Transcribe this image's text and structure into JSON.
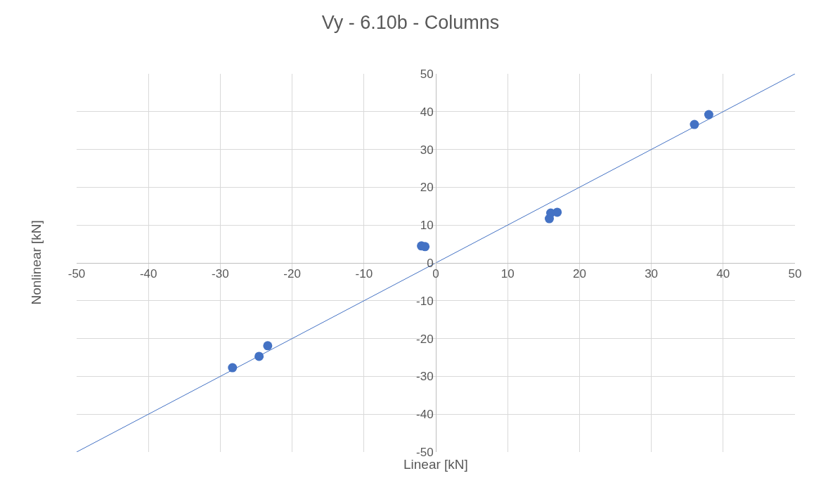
{
  "chart_data": {
    "type": "scatter",
    "title": "Vy - 6.10b - Columns",
    "xlabel": "Linear [kN]",
    "ylabel": "Nonlinear [kN]",
    "x": [
      -28.3,
      -24.6,
      -23.4,
      -2.0,
      -1.5,
      15.8,
      16.0,
      16.9,
      36.0,
      38.0
    ],
    "series": [
      {
        "color": "#4472c4",
        "marker": "circle",
        "values": [
          -27.7,
          -24.7,
          -21.9,
          4.5,
          4.3,
          11.7,
          13.2,
          13.4,
          36.6,
          39.2
        ]
      },
      {
        "type": "line",
        "color": "#4472c4",
        "x": [
          -50,
          50
        ],
        "values": [
          -50,
          50
        ]
      }
    ],
    "xlim": [
      -50,
      50
    ],
    "ylim": [
      -50,
      50
    ],
    "xticks": [
      -50,
      -40,
      -30,
      -20,
      -10,
      0,
      10,
      20,
      30,
      40,
      50
    ],
    "yticks": [
      -50,
      -40,
      -30,
      -20,
      -10,
      0,
      10,
      20,
      30,
      40,
      50
    ],
    "grid": true,
    "legend": false,
    "line_style": "solid"
  }
}
